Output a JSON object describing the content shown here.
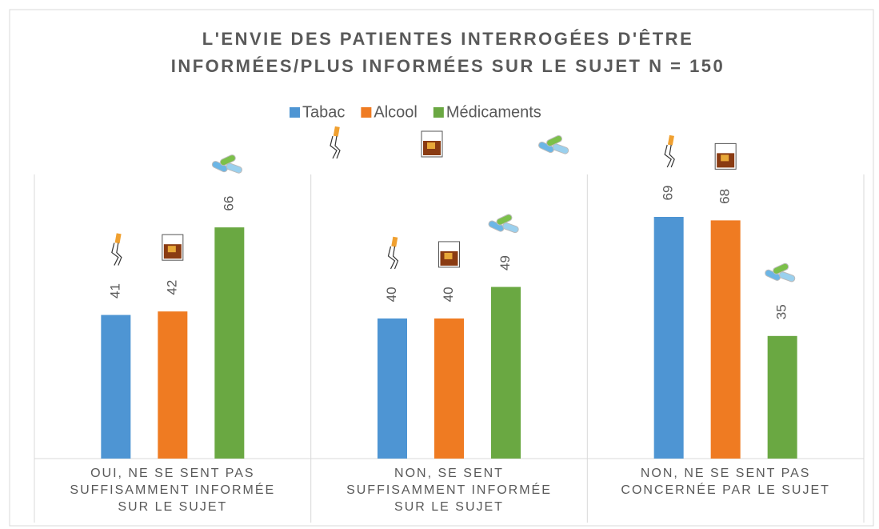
{
  "chart_data": {
    "type": "bar",
    "title": [
      "L'ENVIE DES PATIENTES INTERROGÉES D'ÊTRE",
      "INFORMÉES/PLUS INFORMÉES SUR LE SUJET N = 150"
    ],
    "categories": [
      [
        "OUI, NE SE SENT PAS",
        "SUFFISAMMENT INFORMÉE",
        "SUR LE SUJET"
      ],
      [
        "NON, SE SENT",
        "SUFFISAMMENT INFORMÉE",
        "SUR LE SUJET"
      ],
      [
        "NON, NE SE SENT PAS",
        "CONCERNÉE PAR LE SUJET"
      ]
    ],
    "series": [
      {
        "name": "Tabac",
        "color": "#4e95d3",
        "values": [
          41,
          40,
          69
        ]
      },
      {
        "name": "Alcool",
        "color": "#ef7b22",
        "values": [
          42,
          40,
          68
        ]
      },
      {
        "name": "Médicaments",
        "color": "#6aa842",
        "values": [
          66,
          49,
          35
        ]
      }
    ]
  }
}
